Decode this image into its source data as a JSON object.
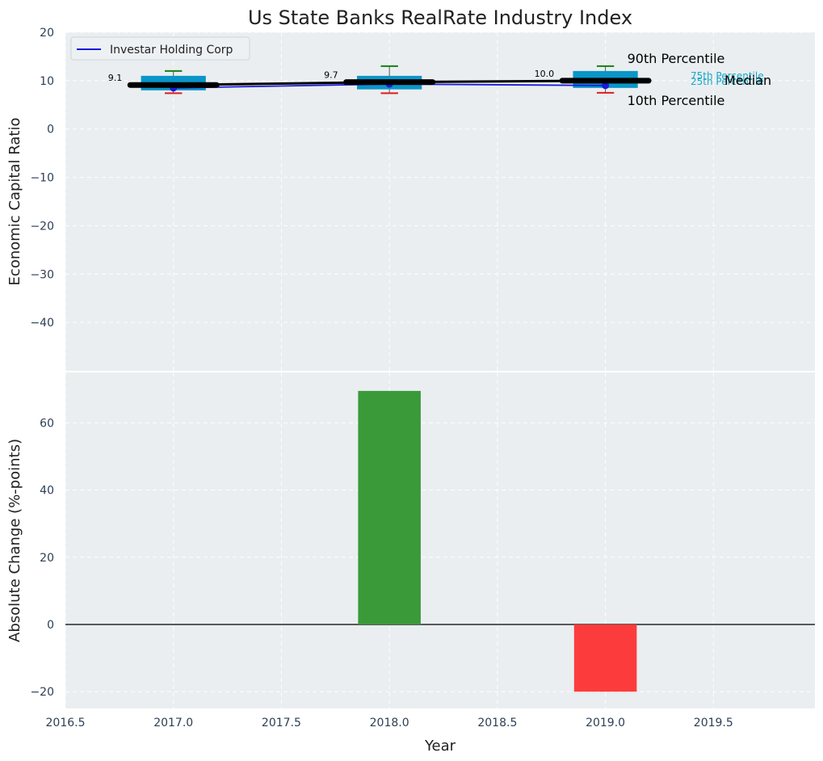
{
  "colors": {
    "panel_bg": "#eaeef0",
    "grid": "#ffffff",
    "box": "#0a96c8",
    "company_line": "#1a1adb",
    "median_line": "#000000",
    "whisker_high": "#168016",
    "whisker_low": "#e01b1b",
    "bar_positive": "#3a9a3a",
    "bar_negative": "#fc3c3c",
    "pct_label": "#17a8c9"
  },
  "chart_data": [
    {
      "type": "box",
      "title": "Us State Banks RealRate Industry Index",
      "xlabel": "",
      "ylabel": "Economic Capital Ratio",
      "xlim": [
        2016.5,
        2019.97
      ],
      "ylim": [
        -50,
        20
      ],
      "yticks": [
        20,
        10,
        0,
        -10,
        -20,
        -30,
        -40
      ],
      "ytick_labels": [
        "20",
        "10",
        "0",
        "−10",
        "−20",
        "−30",
        "−40"
      ],
      "grid": true,
      "legend_position": "top-left",
      "x": [
        2017,
        2018,
        2019
      ],
      "p10": [
        7.4,
        7.4,
        7.5
      ],
      "p25": [
        8.0,
        8.2,
        8.5
      ],
      "median": [
        9.1,
        9.7,
        10.0
      ],
      "p75": [
        11.0,
        11.0,
        12.0
      ],
      "p90": [
        12.0,
        13.0,
        13.0
      ],
      "median_labels": [
        "9.1",
        "9.7",
        "10.0"
      ],
      "series": [
        {
          "name": "Investar Holding Corp",
          "values": [
            8.5,
            9.3,
            9.0
          ]
        }
      ],
      "annotations": {
        "p90": "90th Percentile",
        "p75": "75th Percentile",
        "median": "Median",
        "p25": "25th Percentile",
        "p10": "10th Percentile"
      }
    },
    {
      "type": "bar",
      "xlabel": "Year",
      "ylabel": "Absolute Change (%-points)",
      "xlim": [
        2016.5,
        2019.97
      ],
      "ylim": [
        -25,
        75
      ],
      "yticks": [
        60,
        40,
        20,
        0,
        -20
      ],
      "ytick_labels": [
        "60",
        "40",
        "20",
        "0",
        "−20"
      ],
      "xticks": [
        2016.5,
        2017.0,
        2017.5,
        2018.0,
        2018.5,
        2019.0,
        2019.5
      ],
      "xtick_labels": [
        "2016.5",
        "2017.0",
        "2017.5",
        "2018.0",
        "2018.5",
        "2019.0",
        "2019.5"
      ],
      "grid": true,
      "x": [
        2018,
        2019
      ],
      "values": [
        69.5,
        -20
      ]
    }
  ]
}
